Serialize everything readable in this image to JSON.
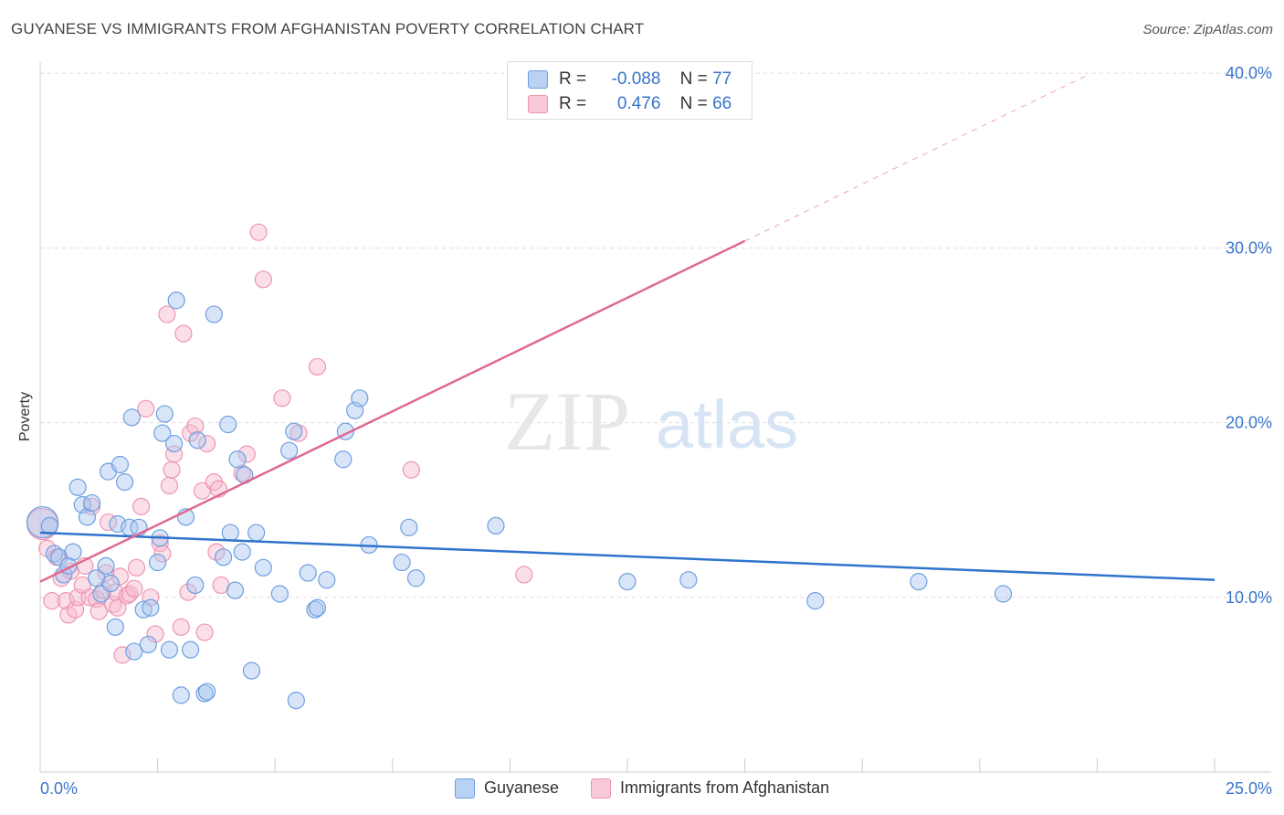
{
  "title": "GUYANESE VS IMMIGRANTS FROM AFGHANISTAN POVERTY CORRELATION CHART",
  "source": "Source: ZipAtlas.com",
  "watermark": {
    "zip": "ZIP",
    "atlas": "atlas"
  },
  "legend": {
    "r_label": "R =",
    "n_label": "N =",
    "rows": [
      {
        "r": "-0.088",
        "n": "77"
      },
      {
        "r": "0.476",
        "n": "66"
      }
    ]
  },
  "colors": {
    "guyanese_fill": "#a9c6ef",
    "guyanese_stroke": "#6f9ee0",
    "guyanese_line": "#2f74cc",
    "afghan_fill": "#f6b8cb",
    "afghan_stroke": "#ee95b2",
    "afghan_line": "#e06891",
    "axis_label": "#3a74c9",
    "grid": "#dddddd"
  },
  "chart_data": {
    "type": "scatter",
    "title": "GUYANESE VS IMMIGRANTS FROM AFGHANISTAN POVERTY CORRELATION CHART",
    "xlabel": "",
    "ylabel": "Poverty",
    "xlim": [
      0,
      25
    ],
    "ylim": [
      0,
      40.9
    ],
    "x_tick_labels": [
      "0.0%",
      "25.0%"
    ],
    "y_ticks": [
      10,
      20,
      30,
      40
    ],
    "y_tick_labels": [
      "10.0%",
      "20.0%",
      "30.0%",
      "40.0%"
    ],
    "grid": "horizontal dashed",
    "legend_position": "top-center",
    "series": [
      {
        "name": "Guyanese",
        "r": -0.088,
        "n": 77,
        "trend": {
          "x": [
            0,
            25
          ],
          "y": [
            13.7,
            11.0
          ]
        },
        "points": [
          {
            "x": 0.05,
            "y": 14.3,
            "big": true
          },
          {
            "x": 0.2,
            "y": 14.1
          },
          {
            "x": 0.3,
            "y": 12.5
          },
          {
            "x": 0.4,
            "y": 12.3
          },
          {
            "x": 0.5,
            "y": 11.3
          },
          {
            "x": 0.6,
            "y": 11.8
          },
          {
            "x": 0.7,
            "y": 12.6
          },
          {
            "x": 0.8,
            "y": 16.3
          },
          {
            "x": 0.9,
            "y": 15.3
          },
          {
            "x": 1.0,
            "y": 14.6
          },
          {
            "x": 1.1,
            "y": 15.4
          },
          {
            "x": 1.2,
            "y": 11.1
          },
          {
            "x": 1.3,
            "y": 10.2
          },
          {
            "x": 1.4,
            "y": 11.8
          },
          {
            "x": 1.5,
            "y": 10.8
          },
          {
            "x": 1.45,
            "y": 17.2
          },
          {
            "x": 1.6,
            "y": 8.3
          },
          {
            "x": 1.65,
            "y": 14.2
          },
          {
            "x": 1.7,
            "y": 17.6
          },
          {
            "x": 1.8,
            "y": 16.6
          },
          {
            "x": 1.9,
            "y": 14.0
          },
          {
            "x": 1.95,
            "y": 20.3
          },
          {
            "x": 2.0,
            "y": 6.9
          },
          {
            "x": 2.1,
            "y": 14.0
          },
          {
            "x": 2.2,
            "y": 9.3
          },
          {
            "x": 2.3,
            "y": 7.3
          },
          {
            "x": 2.35,
            "y": 9.4
          },
          {
            "x": 2.5,
            "y": 12.0
          },
          {
            "x": 2.55,
            "y": 13.4
          },
          {
            "x": 2.6,
            "y": 19.4
          },
          {
            "x": 2.65,
            "y": 20.5
          },
          {
            "x": 2.75,
            "y": 7.0
          },
          {
            "x": 2.85,
            "y": 18.8
          },
          {
            "x": 2.9,
            "y": 27.0
          },
          {
            "x": 3.0,
            "y": 4.4
          },
          {
            "x": 3.1,
            "y": 14.6
          },
          {
            "x": 3.2,
            "y": 7.0
          },
          {
            "x": 3.3,
            "y": 10.7
          },
          {
            "x": 3.35,
            "y": 19.0
          },
          {
            "x": 3.5,
            "y": 4.5
          },
          {
            "x": 3.55,
            "y": 4.6
          },
          {
            "x": 3.7,
            "y": 26.2
          },
          {
            "x": 3.9,
            "y": 12.3
          },
          {
            "x": 4.0,
            "y": 19.9
          },
          {
            "x": 4.05,
            "y": 13.7
          },
          {
            "x": 4.15,
            "y": 10.4
          },
          {
            "x": 4.2,
            "y": 17.9
          },
          {
            "x": 4.3,
            "y": 12.6
          },
          {
            "x": 4.35,
            "y": 17.0
          },
          {
            "x": 4.5,
            "y": 5.8
          },
          {
            "x": 4.6,
            "y": 13.7
          },
          {
            "x": 4.75,
            "y": 11.7
          },
          {
            "x": 5.1,
            "y": 10.2
          },
          {
            "x": 5.3,
            "y": 18.4
          },
          {
            "x": 5.4,
            "y": 19.5
          },
          {
            "x": 5.45,
            "y": 4.1
          },
          {
            "x": 5.7,
            "y": 11.4
          },
          {
            "x": 5.85,
            "y": 9.3
          },
          {
            "x": 5.9,
            "y": 9.4
          },
          {
            "x": 6.1,
            "y": 11.0
          },
          {
            "x": 6.45,
            "y": 17.9
          },
          {
            "x": 6.5,
            "y": 19.5
          },
          {
            "x": 6.7,
            "y": 20.7
          },
          {
            "x": 6.8,
            "y": 21.4
          },
          {
            "x": 7.0,
            "y": 13.0
          },
          {
            "x": 7.7,
            "y": 12.0
          },
          {
            "x": 7.85,
            "y": 14.0
          },
          {
            "x": 8.0,
            "y": 11.1
          },
          {
            "x": 9.7,
            "y": 14.1
          },
          {
            "x": 12.5,
            "y": 10.9
          },
          {
            "x": 13.8,
            "y": 11.0
          },
          {
            "x": 16.5,
            "y": 9.8
          },
          {
            "x": 18.7,
            "y": 10.9
          },
          {
            "x": 20.5,
            "y": 10.2
          }
        ]
      },
      {
        "name": "Immigrants from Afghanistan",
        "r": 0.476,
        "n": 66,
        "trend": {
          "x": [
            0,
            15
          ],
          "y": [
            10.9,
            30.4
          ],
          "x_ext": [
            15,
            22.3
          ],
          "y_ext": [
            30.4,
            39.9
          ]
        },
        "points": [
          {
            "x": 0.05,
            "y": 14.2,
            "big": true
          },
          {
            "x": 0.15,
            "y": 12.8
          },
          {
            "x": 0.25,
            "y": 9.8
          },
          {
            "x": 0.35,
            "y": 12.3
          },
          {
            "x": 0.45,
            "y": 11.1
          },
          {
            "x": 0.55,
            "y": 9.8
          },
          {
            "x": 0.6,
            "y": 9.0
          },
          {
            "x": 0.65,
            "y": 11.5
          },
          {
            "x": 0.75,
            "y": 9.3
          },
          {
            "x": 0.8,
            "y": 10.0
          },
          {
            "x": 0.9,
            "y": 10.7
          },
          {
            "x": 0.95,
            "y": 11.8
          },
          {
            "x": 1.05,
            "y": 10.0
          },
          {
            "x": 1.1,
            "y": 15.2
          },
          {
            "x": 1.2,
            "y": 9.9
          },
          {
            "x": 1.25,
            "y": 9.2
          },
          {
            "x": 1.35,
            "y": 10.4
          },
          {
            "x": 1.4,
            "y": 11.4
          },
          {
            "x": 1.45,
            "y": 14.3
          },
          {
            "x": 1.55,
            "y": 9.6
          },
          {
            "x": 1.6,
            "y": 10.3
          },
          {
            "x": 1.65,
            "y": 9.4
          },
          {
            "x": 1.7,
            "y": 11.2
          },
          {
            "x": 1.75,
            "y": 6.7
          },
          {
            "x": 1.85,
            "y": 10.1
          },
          {
            "x": 1.9,
            "y": 10.2
          },
          {
            "x": 2.0,
            "y": 10.5
          },
          {
            "x": 2.05,
            "y": 11.7
          },
          {
            "x": 2.15,
            "y": 15.2
          },
          {
            "x": 2.25,
            "y": 20.8
          },
          {
            "x": 2.35,
            "y": 10.0
          },
          {
            "x": 2.45,
            "y": 7.9
          },
          {
            "x": 2.55,
            "y": 13.1
          },
          {
            "x": 2.6,
            "y": 12.5
          },
          {
            "x": 2.7,
            "y": 26.2
          },
          {
            "x": 2.75,
            "y": 16.4
          },
          {
            "x": 2.8,
            "y": 17.3
          },
          {
            "x": 2.85,
            "y": 18.2
          },
          {
            "x": 3.0,
            "y": 8.3
          },
          {
            "x": 3.05,
            "y": 25.1
          },
          {
            "x": 3.15,
            "y": 10.3
          },
          {
            "x": 3.2,
            "y": 19.4
          },
          {
            "x": 3.3,
            "y": 19.8
          },
          {
            "x": 3.45,
            "y": 16.1
          },
          {
            "x": 3.5,
            "y": 8.0
          },
          {
            "x": 3.55,
            "y": 18.8
          },
          {
            "x": 3.7,
            "y": 16.6
          },
          {
            "x": 3.75,
            "y": 12.6
          },
          {
            "x": 3.8,
            "y": 16.2
          },
          {
            "x": 3.85,
            "y": 10.7
          },
          {
            "x": 4.3,
            "y": 17.1
          },
          {
            "x": 4.4,
            "y": 18.2
          },
          {
            "x": 4.65,
            "y": 30.9
          },
          {
            "x": 4.75,
            "y": 28.2
          },
          {
            "x": 5.15,
            "y": 21.4
          },
          {
            "x": 5.5,
            "y": 19.4
          },
          {
            "x": 5.9,
            "y": 23.2
          },
          {
            "x": 7.9,
            "y": 17.3
          },
          {
            "x": 10.3,
            "y": 11.3
          }
        ]
      }
    ]
  },
  "bottom_legend": [
    "Guyanese",
    "Immigrants from Afghanistan"
  ]
}
